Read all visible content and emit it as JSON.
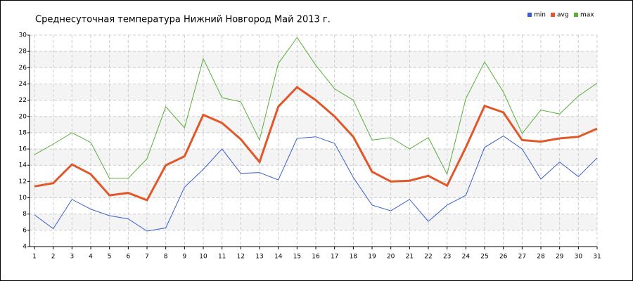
{
  "chart_data": {
    "type": "line",
    "title": "Среднесуточная температура Нижний Новгород  Май 2013 г.",
    "categories": [
      "1",
      "2",
      "3",
      "4",
      "5",
      "6",
      "7",
      "8",
      "9",
      "10",
      "11",
      "12",
      "13",
      "14",
      "15",
      "16",
      "17",
      "18",
      "19",
      "20",
      "21",
      "22",
      "23",
      "24",
      "25",
      "26",
      "27",
      "28",
      "29",
      "30",
      "31"
    ],
    "series": [
      {
        "name": "min",
        "color": "#3a5fcd",
        "values": [
          7.9,
          6.2,
          9.8,
          8.6,
          7.8,
          7.4,
          5.9,
          6.3,
          11.3,
          13.5,
          16,
          13,
          13.1,
          12.2,
          17.3,
          17.5,
          16.7,
          12.5,
          9.1,
          8.4,
          9.8,
          7.1,
          9.1,
          10.3,
          16.2,
          17.6,
          16,
          12.3,
          14.4,
          12.6,
          14.9
        ]
      },
      {
        "name": "avg",
        "color": "#e0582a",
        "values": [
          11.4,
          11.8,
          14.1,
          12.9,
          10.3,
          10.6,
          9.7,
          14,
          15.1,
          20.2,
          19.2,
          17.2,
          14.4,
          21.2,
          23.6,
          22,
          20,
          17.5,
          13.2,
          12,
          12.1,
          12.7,
          11.5,
          16.2,
          21.3,
          20.5,
          17.1,
          16.9,
          17.3,
          17.5,
          18.5
        ]
      },
      {
        "name": "max",
        "color": "#5aae3a",
        "values": [
          15.3,
          16.6,
          18,
          16.8,
          12.4,
          12.4,
          14.8,
          21.2,
          18.6,
          27.1,
          22.3,
          21.8,
          17.1,
          26.5,
          29.7,
          26.3,
          23.4,
          22,
          17.1,
          17.4,
          16,
          17.4,
          12.9,
          22.2,
          26.7,
          23,
          17.9,
          20.8,
          20.3,
          22.5,
          24.1
        ]
      }
    ],
    "ylim": [
      4,
      30
    ],
    "yticks": [
      4,
      6,
      8,
      10,
      12,
      14,
      16,
      18,
      20,
      22,
      24,
      26,
      28,
      30
    ],
    "grid": true
  }
}
